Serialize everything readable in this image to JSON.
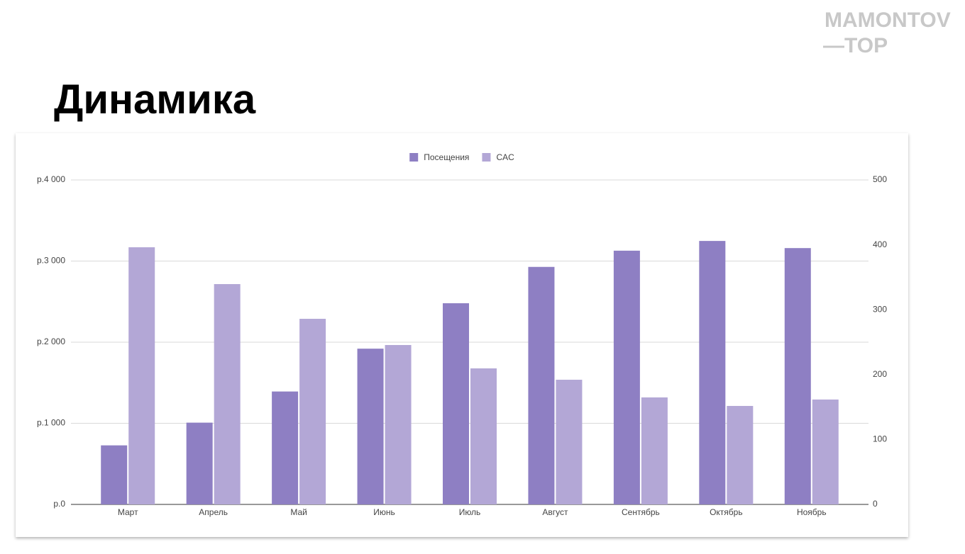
{
  "logo": [
    "MAMONTOV",
    "—TOP"
  ],
  "chart_data": {
    "type": "bar",
    "title": "Динамика",
    "categories": [
      "Март",
      "Апрель",
      "Май",
      "Июнь",
      "Июль",
      "Август",
      "Сентябрь",
      "Октябрь",
      "Ноябрь"
    ],
    "series": [
      {
        "name": "Посещения",
        "color": "#8e7fc3",
        "axis": "y2",
        "values": [
          91,
          126,
          174,
          240,
          310,
          366,
          391,
          406,
          395
        ]
      },
      {
        "name": "CAC",
        "color": "#b3a7d6",
        "values": [
          3170,
          2716,
          2288,
          1965,
          1677,
          1537,
          1319,
          1214,
          1293
        ]
      }
    ],
    "ylim": [
      0,
      4000
    ],
    "yticks": [
      {
        "value": 0,
        "label": "р.0"
      },
      {
        "value": 1000,
        "label": "р.1 000"
      },
      {
        "value": 2000,
        "label": "р.2 000"
      },
      {
        "value": 3000,
        "label": "р.3 000"
      },
      {
        "value": 4000,
        "label": "р.4 000"
      }
    ],
    "y2lim": [
      0,
      500
    ],
    "y2ticks": [
      0,
      100,
      200,
      300,
      400,
      500
    ],
    "grid": true,
    "legend": "top"
  }
}
